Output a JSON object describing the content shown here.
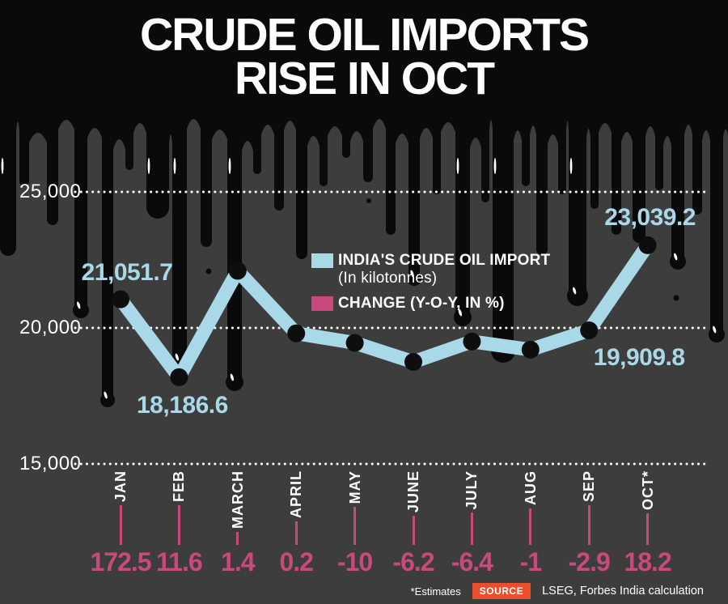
{
  "title": {
    "line1": "CRUDE OIL IMPORTS",
    "line2": "RISE IN OCT"
  },
  "legend": {
    "imports": {
      "label": "INDIA'S CRUDE OIL IMPORT",
      "sublabel": "(In kilotonnes)",
      "color": "#a9d8e8"
    },
    "change": {
      "label": "CHANGE",
      "detail": "(Y-O-Y, IN %)",
      "color": "#c9497c"
    }
  },
  "chart_data": {
    "type": "line",
    "title": "CRUDE OIL IMPORTS RISE IN OCT",
    "categories": [
      "JAN",
      "FEB",
      "MARCH",
      "APRIL",
      "MAY",
      "JUNE",
      "JULY",
      "AUG",
      "SEP",
      "OCT*"
    ],
    "series": [
      {
        "name": "INDIA'S CRUDE OIL IMPORT (In kilotonnes)",
        "color": "#a9d8e8",
        "values": [
          21051.7,
          18186.6,
          22100,
          19800,
          19450,
          18750,
          19500,
          19200,
          19909.8,
          23039.2
        ],
        "point_labels": [
          "21,051.7",
          "18,186.6",
          "",
          "",
          "",
          "",
          "",
          "",
          "19,909.8",
          "23,039.2"
        ]
      },
      {
        "name": "CHANGE (Y-O-Y, IN %)",
        "color": "#c9497c",
        "values": [
          172.5,
          11.6,
          1.4,
          0.2,
          -10,
          -6.2,
          -6.4,
          -1,
          -2.9,
          18.2
        ],
        "value_labels": [
          "172.5",
          "11.6",
          "1.4",
          "0.2",
          "-10",
          "-6.2",
          "-6.4",
          "-1",
          "-2.9",
          "18.2"
        ]
      }
    ],
    "yticks": [
      {
        "value": 25000,
        "label": "25,000"
      },
      {
        "value": 20000,
        "label": "20,000"
      },
      {
        "value": 15000,
        "label": "15,000"
      }
    ],
    "ylim": [
      15000,
      25000
    ],
    "grid": "horizontal-dotted",
    "legend_position": "inside-top-center"
  },
  "footer": {
    "estimates_note": "*Estimates",
    "source_badge": "SOURCE",
    "source_text": "LSEG, Forbes India calculation"
  },
  "colors": {
    "background": "#3e3d3d",
    "oil_black": "#0a0a0a",
    "imports_blue": "#a9d8e8",
    "change_pink": "#c9497c",
    "text_white": "#ffffff",
    "source_badge_bg": "#e8502d"
  }
}
